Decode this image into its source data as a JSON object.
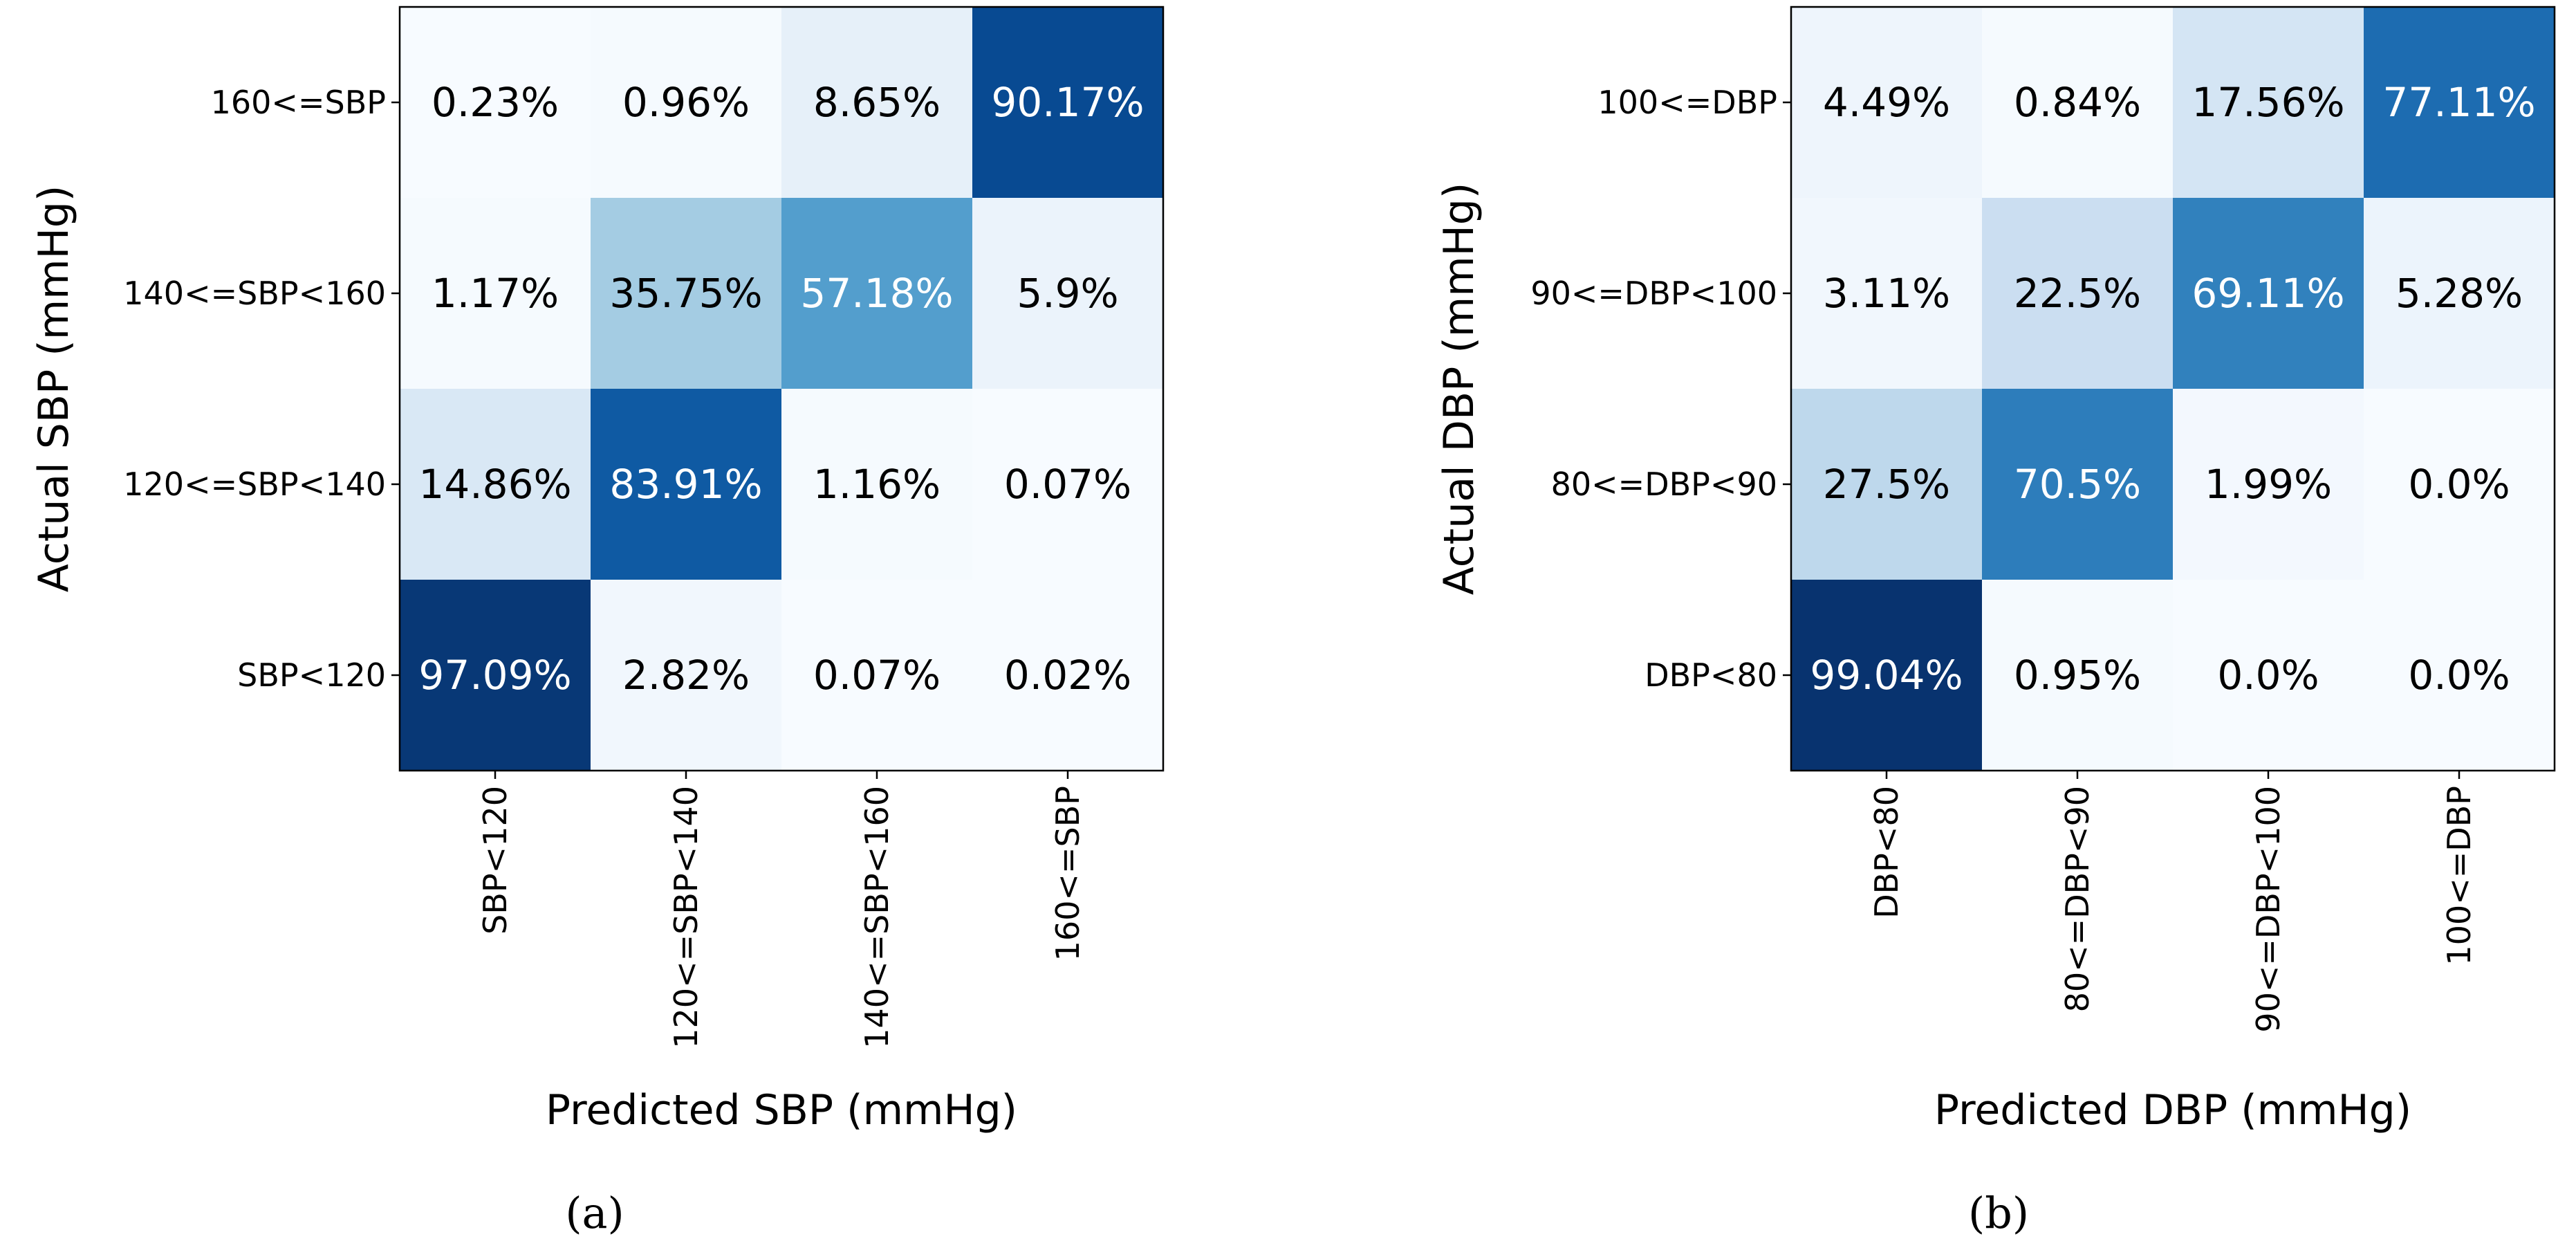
{
  "chart_data": [
    {
      "type": "heatmap",
      "caption": "(a)",
      "xlabel": "Predicted SBP (mmHg)",
      "ylabel": "Actual SBP (mmHg)",
      "x_categories": [
        "SBP<120",
        "120<=SBP<140",
        "140<=SBP<160",
        "160<=SBP"
      ],
      "y_categories_top_to_bottom": [
        "160<=SBP",
        "140<=SBP<160",
        "120<=SBP<140",
        "SBP<120"
      ],
      "values": [
        [
          0.23,
          0.96,
          8.65,
          90.17
        ],
        [
          1.17,
          35.75,
          57.18,
          5.9
        ],
        [
          14.86,
          83.91,
          1.16,
          0.07
        ],
        [
          97.09,
          2.82,
          0.07,
          0.02
        ]
      ],
      "labels": [
        [
          "0.23%",
          "0.96%",
          "8.65%",
          "90.17%"
        ],
        [
          "1.17%",
          "35.75%",
          "57.18%",
          "5.9%"
        ],
        [
          "14.86%",
          "83.91%",
          "1.16%",
          "0.07%"
        ],
        [
          "97.09%",
          "2.82%",
          "0.07%",
          "0.02%"
        ]
      ],
      "colormap": "Blues",
      "value_range": [
        0,
        100
      ]
    },
    {
      "type": "heatmap",
      "caption": "(b)",
      "xlabel": "Predicted DBP (mmHg)",
      "ylabel": "Actual DBP (mmHg)",
      "x_categories": [
        "DBP<80",
        "80<=DBP<90",
        "90<=DBP<100",
        "100<=DBP"
      ],
      "y_categories_top_to_bottom": [
        "100<=DBP",
        "90<=DBP<100",
        "80<=DBP<90",
        "DBP<80"
      ],
      "values": [
        [
          4.49,
          0.84,
          17.56,
          77.11
        ],
        [
          3.11,
          22.5,
          69.11,
          5.28
        ],
        [
          27.5,
          70.5,
          1.99,
          0.0
        ],
        [
          99.04,
          0.95,
          0.0,
          0.0
        ]
      ],
      "labels": [
        [
          "4.49%",
          "0.84%",
          "17.56%",
          "77.11%"
        ],
        [
          "3.11%",
          "22.5%",
          "69.11%",
          "5.28%"
        ],
        [
          "27.5%",
          "70.5%",
          "1.99%",
          "0.0%"
        ],
        [
          "99.04%",
          "0.95%",
          "0.0%",
          "0.0%"
        ]
      ],
      "colormap": "Blues",
      "value_range": [
        0,
        100
      ]
    }
  ]
}
